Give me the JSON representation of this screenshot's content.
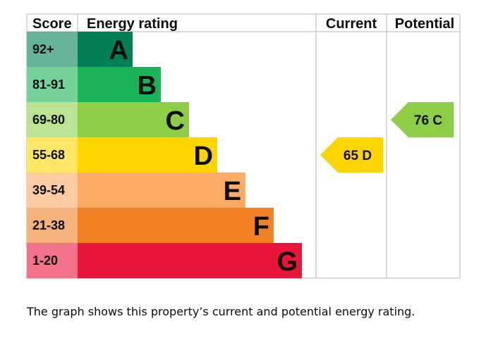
{
  "chart_data": {
    "type": "bar",
    "headers": {
      "score": "Score",
      "rating": "Energy rating",
      "current": "Current",
      "potential": "Potential"
    },
    "bands": [
      {
        "score": "92+",
        "letter": "A",
        "min": 92,
        "max": 100,
        "color": "#008054",
        "score_color": "#66b398"
      },
      {
        "score": "81-91",
        "letter": "B",
        "min": 81,
        "max": 91,
        "color": "#19b459",
        "score_color": "#75d29b"
      },
      {
        "score": "69-80",
        "letter": "C",
        "min": 69,
        "max": 80,
        "color": "#8dce46",
        "score_color": "#bbe290"
      },
      {
        "score": "55-68",
        "letter": "D",
        "min": 55,
        "max": 68,
        "color": "#ffd500",
        "score_color": "#ffe666"
      },
      {
        "score": "39-54",
        "letter": "E",
        "min": 39,
        "max": 54,
        "color": "#fcaa65",
        "score_color": "#fdcca3"
      },
      {
        "score": "21-38",
        "letter": "F",
        "min": 21,
        "max": 38,
        "color": "#ef8023",
        "score_color": "#f5b37b"
      },
      {
        "score": "1-20",
        "letter": "G",
        "min": 1,
        "max": 20,
        "color": "#e9153b",
        "score_color": "#f27389"
      }
    ],
    "current": {
      "value": 65,
      "letter": "D",
      "label": "65 D",
      "color": "#ffd500"
    },
    "potential": {
      "value": 76,
      "letter": "C",
      "label": "76 C",
      "color": "#8dce46"
    }
  },
  "caption": "The graph shows this property’s current and potential energy rating."
}
